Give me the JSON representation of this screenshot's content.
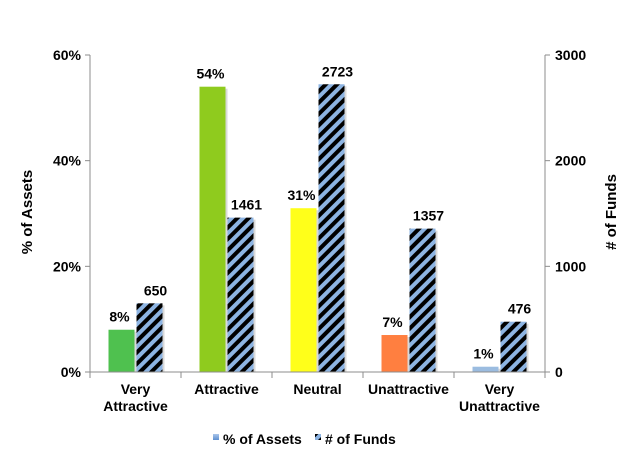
{
  "chart_data": {
    "type": "bar",
    "categories": [
      [
        "Very",
        "Attractive"
      ],
      [
        "Attractive"
      ],
      [
        "Neutral"
      ],
      [
        "Unattractive"
      ],
      [
        "Very",
        "Unattractive"
      ]
    ],
    "series": [
      {
        "name": "% of Assets",
        "axis": "left",
        "values": [
          8,
          54,
          31,
          7,
          1
        ],
        "labels": [
          "8%",
          "54%",
          "31%",
          "7%",
          "1%"
        ],
        "colors": [
          "#4fc14f",
          "#8fcb1e",
          "#ffff1a",
          "#ff7f40",
          "#9bbce0"
        ]
      },
      {
        "name": "# of Funds",
        "axis": "right",
        "values": [
          650,
          1461,
          2723,
          1357,
          476
        ],
        "labels": [
          "650",
          "1461",
          "2723",
          "1357",
          "476"
        ],
        "pattern": "diagonal-stripes",
        "colors": [
          "#000000",
          "#8db4e2"
        ]
      }
    ],
    "left_axis": {
      "title": "% of Assets",
      "ylim": [
        0,
        60
      ],
      "ticks": [
        0,
        20,
        40,
        60
      ],
      "tick_labels": [
        "0%",
        "20%",
        "40%",
        "60%"
      ]
    },
    "right_axis": {
      "title": "# of Funds",
      "ylim": [
        0,
        3000
      ],
      "ticks": [
        0,
        1000,
        2000,
        3000
      ],
      "tick_labels": [
        "0",
        "1000",
        "2000",
        "3000"
      ]
    },
    "legend": {
      "position": "bottom",
      "entries": [
        "% of Assets",
        "# of Funds"
      ]
    },
    "grid": false
  }
}
